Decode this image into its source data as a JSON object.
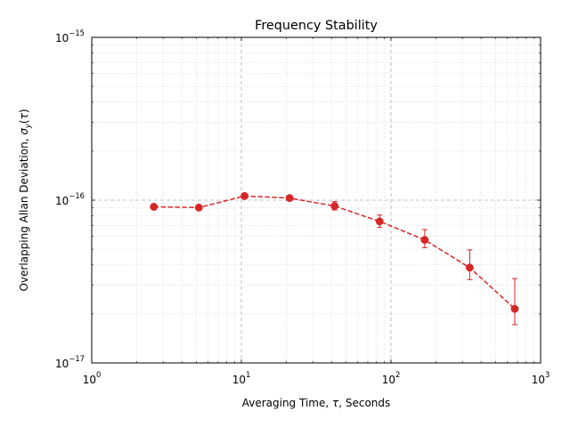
{
  "chart_data": {
    "type": "scatter",
    "title": "Frequency Stability",
    "xlabel": "Averaging Time, τ, Seconds",
    "ylabel": "Overlapping Allan Deviation, σ_y(τ)",
    "xlabel_parts": {
      "pre": "Averaging Time, ",
      "sym": "τ",
      "post": ", Seconds"
    },
    "ylabel_parts": {
      "pre": "Overlapping Allan Deviation, ",
      "sym": "σ",
      "sub": "y",
      "open": "(",
      "arg": "τ",
      "close": ")"
    },
    "xscale": "log",
    "yscale": "log",
    "xlim": [
      1,
      1000
    ],
    "ylim": [
      1e-17,
      1e-15
    ],
    "x_ticks": [
      {
        "base": "10",
        "exp": "0"
      },
      {
        "base": "10",
        "exp": "1"
      },
      {
        "base": "10",
        "exp": "2"
      },
      {
        "base": "10",
        "exp": "3"
      }
    ],
    "y_ticks": [
      {
        "base": "10",
        "exp": "−17"
      },
      {
        "base": "10",
        "exp": "−16"
      },
      {
        "base": "10",
        "exp": "−15"
      }
    ],
    "grid": true,
    "series": [
      {
        "color": "#d62728",
        "linestyle": "dashed",
        "marker": "circle",
        "points": [
          {
            "x": 2.6,
            "y": 9.1e-17,
            "ylow": 9e-17,
            "yhigh": 9.2e-17
          },
          {
            "x": 5.2,
            "y": 9e-17,
            "ylow": 8.9e-17,
            "yhigh": 9.1e-17
          },
          {
            "x": 10.5,
            "y": 1.06e-16,
            "ylow": 1.05e-16,
            "yhigh": 1.07e-16
          },
          {
            "x": 21,
            "y": 1.03e-16,
            "ylow": 1.01e-16,
            "yhigh": 1.05e-16
          },
          {
            "x": 42,
            "y": 9.2e-17,
            "ylow": 8.7e-17,
            "yhigh": 9.8e-17
          },
          {
            "x": 84,
            "y": 7.4e-17,
            "ylow": 6.8e-17,
            "yhigh": 8.1e-17
          },
          {
            "x": 168,
            "y": 5.7e-17,
            "ylow": 5.1e-17,
            "yhigh": 6.6e-17
          },
          {
            "x": 336,
            "y": 3.85e-17,
            "ylow": 3.25e-17,
            "yhigh": 4.95e-17
          },
          {
            "x": 672,
            "y": 2.15e-17,
            "ylow": 1.72e-17,
            "yhigh": 3.3e-17
          }
        ]
      }
    ]
  }
}
